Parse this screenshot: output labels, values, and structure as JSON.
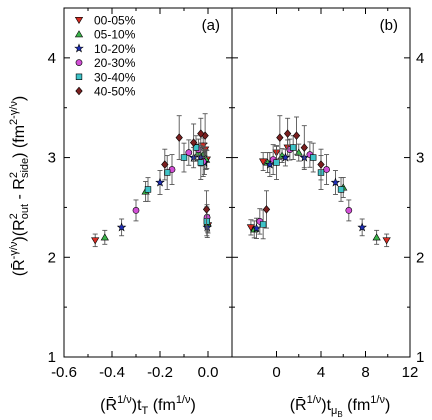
{
  "chart_data": [
    {
      "panel": "(a)",
      "type": "scatter",
      "x_label": {
        "main": "(R̄",
        "sup1": "1/ν",
        "mid": ")t",
        "sub": "T",
        "unit": " (fm",
        "sup2": "1/ν",
        "close": ")"
      },
      "y_label": {
        "t1": "(R̄",
        "s1": "-γ/ν",
        "t2": ")(R",
        "s2": "2",
        "b2": "out",
        "t3": " - R",
        "s3": "2",
        "b3": "side",
        "t4": ")  (fm",
        "s4": "2-γ/ν",
        "t5": ")"
      },
      "xlim": [
        -0.6,
        0.1
      ],
      "ylim": [
        1,
        4.5
      ],
      "x_ticks": [
        "-0.6",
        "-0.4",
        "-0.2",
        "0.0"
      ],
      "y_ticks": [
        "1",
        "2",
        "3",
        "4"
      ],
      "series": [
        {
          "name": "00-05%",
          "marker": "triangle-down",
          "color": "#d62b22",
          "points": [
            [
              -0.47,
              2.17
            ],
            [
              -0.0,
              2.32
            ],
            [
              -0.005,
              2.98
            ],
            [
              -0.012,
              3.08
            ],
            [
              -0.02,
              3.12
            ]
          ],
          "err": 0.09
        },
        {
          "name": "05-10%",
          "marker": "triangle-up",
          "color": "#3ab44a",
          "points": [
            [
              -0.43,
              2.2
            ],
            [
              -0.002,
              2.34
            ],
            [
              -0.008,
              2.98
            ],
            [
              -0.02,
              3.03
            ],
            [
              -0.04,
              3.05
            ],
            [
              -0.26,
              2.66
            ]
          ],
          "err": 0.1
        },
        {
          "name": "10-20%",
          "marker": "star",
          "color": "#1f2fb8",
          "points": [
            [
              -0.36,
              2.3
            ],
            [
              -0.003,
              2.3
            ],
            [
              -0.015,
              2.95
            ],
            [
              -0.03,
              3.0
            ],
            [
              -0.06,
              3.0
            ],
            [
              -0.2,
              2.75
            ]
          ],
          "err": 0.12
        },
        {
          "name": "20-30%",
          "marker": "circle",
          "color": "#d24fd6",
          "points": [
            [
              -0.3,
              2.47
            ],
            [
              -0.004,
              2.4
            ],
            [
              -0.02,
              2.96
            ],
            [
              -0.04,
              3.08
            ],
            [
              -0.08,
              3.05
            ],
            [
              -0.15,
              2.88
            ]
          ],
          "err": 0.15
        },
        {
          "name": "30-40%",
          "marker": "square",
          "color": "#3ec3c8",
          "points": [
            [
              -0.25,
              2.68
            ],
            [
              -0.005,
              2.36
            ],
            [
              -0.03,
              2.95
            ],
            [
              -0.05,
              3.1
            ],
            [
              -0.1,
              3.0
            ],
            [
              -0.17,
              2.85
            ]
          ],
          "err": 0.17
        },
        {
          "name": "40-50%",
          "marker": "diamond",
          "color": "#7a1f1f",
          "points": [
            [
              -0.18,
              2.93
            ],
            [
              -0.006,
              2.48
            ],
            [
              -0.012,
              3.22
            ],
            [
              -0.03,
              3.24
            ],
            [
              -0.06,
              3.15
            ],
            [
              -0.12,
              3.2
            ]
          ],
          "err": 0.22
        }
      ]
    },
    {
      "panel": "(b)",
      "type": "scatter",
      "x_label": {
        "main": "(R̄",
        "sup1": "1/ν",
        "mid": ")t",
        "sub": "μ",
        "subsub": "B",
        "unit": " (fm",
        "sup2": "1/ν",
        "close": ")"
      },
      "xlim": [
        -4,
        12
      ],
      "ylim": [
        1,
        4.5
      ],
      "x_ticks": [
        "0",
        "4",
        "8",
        "12"
      ],
      "y_ticks": [
        "1",
        "2",
        "3",
        "4"
      ],
      "series": [
        {
          "name": "00-05%",
          "marker": "triangle-down",
          "color": "#d62b22",
          "points": [
            [
              9.9,
              2.17
            ],
            [
              -2.3,
              2.3
            ],
            [
              -1.2,
              2.96
            ],
            [
              0.0,
              3.05
            ],
            [
              1.0,
              3.1
            ]
          ],
          "err": 0.09
        },
        {
          "name": "05-10%",
          "marker": "triangle-up",
          "color": "#3ab44a",
          "points": [
            [
              9.0,
              2.2
            ],
            [
              -2.0,
              2.28
            ],
            [
              -0.8,
              2.95
            ],
            [
              0.5,
              3.02
            ],
            [
              2.0,
              3.05
            ],
            [
              6.0,
              2.7
            ]
          ],
          "err": 0.1
        },
        {
          "name": "10-20%",
          "marker": "star",
          "color": "#1f2fb8",
          "points": [
            [
              7.7,
              2.3
            ],
            [
              -1.8,
              2.29
            ],
            [
              -0.6,
              2.93
            ],
            [
              0.8,
              3.0
            ],
            [
              2.5,
              3.0
            ],
            [
              5.3,
              2.75
            ]
          ],
          "err": 0.12
        },
        {
          "name": "20-30%",
          "marker": "circle",
          "color": "#d24fd6",
          "points": [
            [
              6.5,
              2.47
            ],
            [
              -1.5,
              2.36
            ],
            [
              -0.3,
              2.98
            ],
            [
              1.2,
              3.08
            ],
            [
              3.0,
              3.03
            ],
            [
              4.5,
              2.88
            ]
          ],
          "err": 0.15
        },
        {
          "name": "30-40%",
          "marker": "square",
          "color": "#3ec3c8",
          "points": [
            [
              5.8,
              2.68
            ],
            [
              -1.2,
              2.33
            ],
            [
              0.0,
              2.95
            ],
            [
              1.5,
              3.1
            ],
            [
              3.3,
              3.0
            ],
            [
              4.0,
              2.85
            ]
          ],
          "err": 0.17
        },
        {
          "name": "40-50%",
          "marker": "diamond",
          "color": "#7a1f1f",
          "points": [
            [
              4.0,
              2.93
            ],
            [
              -0.9,
              2.48
            ],
            [
              0.3,
              3.2
            ],
            [
              1.0,
              3.24
            ],
            [
              1.8,
              3.22
            ],
            [
              2.5,
              3.1
            ]
          ],
          "err": 0.22
        }
      ]
    }
  ]
}
